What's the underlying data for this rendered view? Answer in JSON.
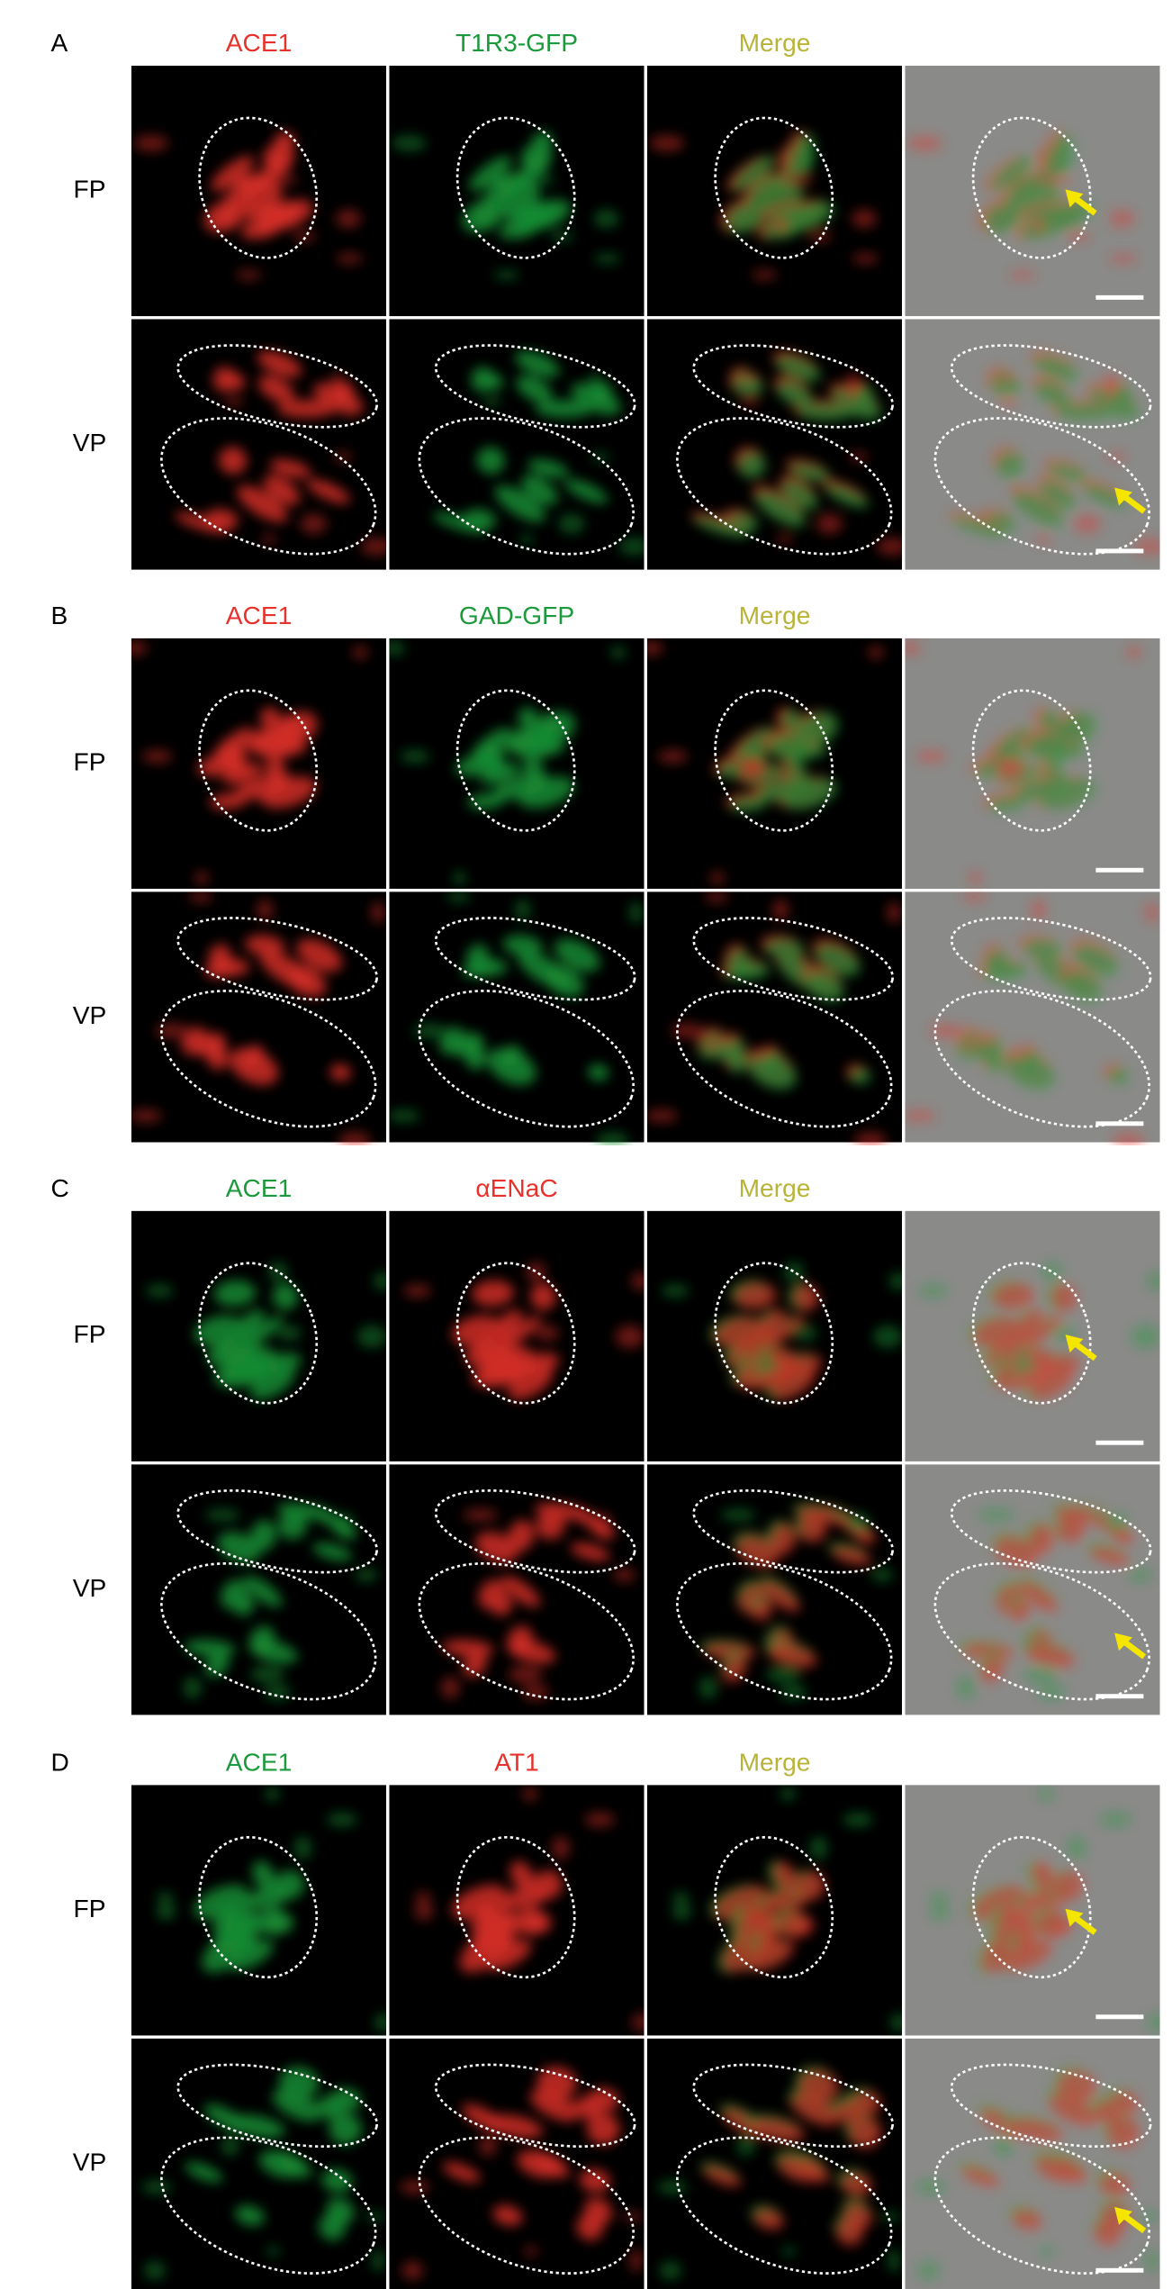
{
  "panels": [
    {
      "letter": "A",
      "columns": [
        {
          "label": "ACE1",
          "color": "#e8312a"
        },
        {
          "label": "T1R3-GFP",
          "color": "#1a9a3a"
        },
        {
          "label": "Merge",
          "color": "#b8b43a"
        }
      ],
      "rows": [
        "FP",
        "VP"
      ]
    },
    {
      "letter": "B",
      "columns": [
        {
          "label": "ACE1",
          "color": "#e8312a"
        },
        {
          "label": "GAD-GFP",
          "color": "#1a9a3a"
        },
        {
          "label": "Merge",
          "color": "#b8b43a"
        }
      ],
      "rows": [
        "FP",
        "VP"
      ]
    },
    {
      "letter": "C",
      "columns": [
        {
          "label": "ACE1",
          "color": "#1a9a3a"
        },
        {
          "label": "αENaC",
          "color": "#e8312a"
        },
        {
          "label": "Merge",
          "color": "#b8b43a"
        }
      ],
      "rows": [
        "FP",
        "VP"
      ]
    },
    {
      "letter": "D",
      "columns": [
        {
          "label": "ACE1",
          "color": "#1a9a3a"
        },
        {
          "label": "AT1",
          "color": "#e8312a"
        },
        {
          "label": "Merge",
          "color": "#b8b43a"
        }
      ],
      "rows": [
        "FP",
        "VP"
      ]
    }
  ]
}
